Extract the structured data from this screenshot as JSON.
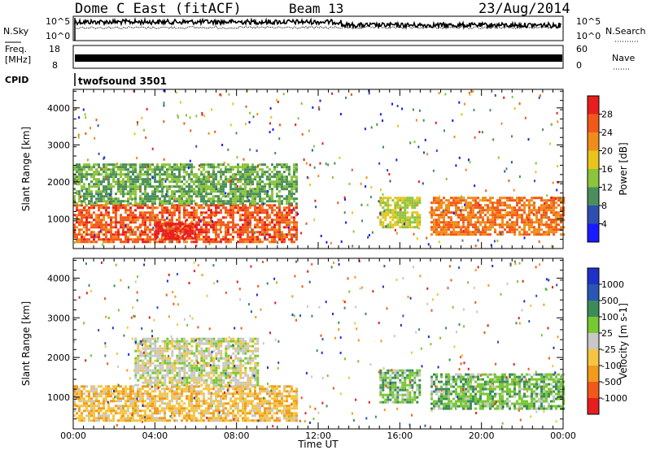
{
  "header": {
    "station": "Dome C East (fitACF)",
    "beam": "Beam 13",
    "date": "23/Aug/2014"
  },
  "top_panels": {
    "nsky_label": "N.Sky",
    "nsky_ticks": [
      "10^5",
      "10^0"
    ],
    "nsearch_label": "N.Search",
    "nsearch_ticks": [
      "10^5",
      "10^0"
    ],
    "freq_label_line1": "Freq.",
    "freq_label_line2": "[MHz]",
    "freq_ticks": [
      "18",
      "8"
    ],
    "nave_label": "Nave",
    "nave_ticks": [
      "60",
      "0"
    ],
    "cpid_label": "CPID",
    "cpid_value": "twofsound 3501"
  },
  "colors": {
    "power_scale": [
      "#1a1aff",
      "#2f4fb0",
      "#4a8e5c",
      "#8cc43c",
      "#e8c51a",
      "#f08c1a",
      "#f2581a",
      "#e81e1e"
    ],
    "velocity_scale": [
      "#e81e1e",
      "#f2581a",
      "#f29a1a",
      "#f5c542",
      "#c8c8c8",
      "#78c832",
      "#3c8c5a",
      "#2a56b4",
      "#1e32c8"
    ]
  },
  "chart_data": [
    {
      "type": "heatmap",
      "name": "power-panel",
      "ylabel": "Slant Range [km]",
      "yticks": [
        "1000",
        "2000",
        "3000",
        "4000"
      ],
      "ylim": [
        200,
        4500
      ],
      "xlim": [
        0,
        24
      ],
      "colorbar": {
        "label": "Power [dB]",
        "ticks": [
          "4",
          "8",
          "12",
          "16",
          "20",
          "24",
          "28"
        ],
        "range": [
          0,
          32
        ]
      },
      "regions": [
        {
          "t0": 0.0,
          "t1": 11.0,
          "r0": 400,
          "r1": 1400,
          "value": 26
        },
        {
          "t0": 0.0,
          "t1": 11.0,
          "r0": 1400,
          "r1": 2500,
          "value": 12
        },
        {
          "t0": 4.0,
          "t1": 6.0,
          "r0": 450,
          "r1": 900,
          "value": 30
        },
        {
          "t0": 15.0,
          "t1": 17.0,
          "r0": 800,
          "r1": 1600,
          "value": 16
        },
        {
          "t0": 17.5,
          "t1": 24.0,
          "r0": 600,
          "r1": 1600,
          "value": 24
        }
      ]
    },
    {
      "type": "heatmap",
      "name": "velocity-panel",
      "ylabel": "Slant Range [km]",
      "yticks": [
        "1000",
        "2000",
        "3000",
        "4000"
      ],
      "ylim": [
        200,
        4500
      ],
      "xlim": [
        0,
        24
      ],
      "xlabel": "Time UT",
      "xticks": [
        "00:00",
        "04:00",
        "08:00",
        "12:00",
        "16:00",
        "20:00",
        "00:00"
      ],
      "colorbar": {
        "label": "Velocity [m s-1]",
        "ticks": [
          "-1000",
          "-500",
          "-100",
          "-25",
          "25",
          "100",
          "500",
          "1000"
        ],
        "range": [
          -1200,
          1200
        ]
      },
      "regions": [
        {
          "t0": 0.0,
          "t1": 11.0,
          "r0": 400,
          "r1": 1300,
          "value": -300
        },
        {
          "t0": 3.0,
          "t1": 9.0,
          "r0": 1300,
          "r1": 2500,
          "value": 0
        },
        {
          "t0": 15.0,
          "t1": 17.0,
          "r0": 900,
          "r1": 1700,
          "value": 300
        },
        {
          "t0": 17.5,
          "t1": 24.0,
          "r0": 700,
          "r1": 1600,
          "value": 300
        }
      ]
    }
  ]
}
